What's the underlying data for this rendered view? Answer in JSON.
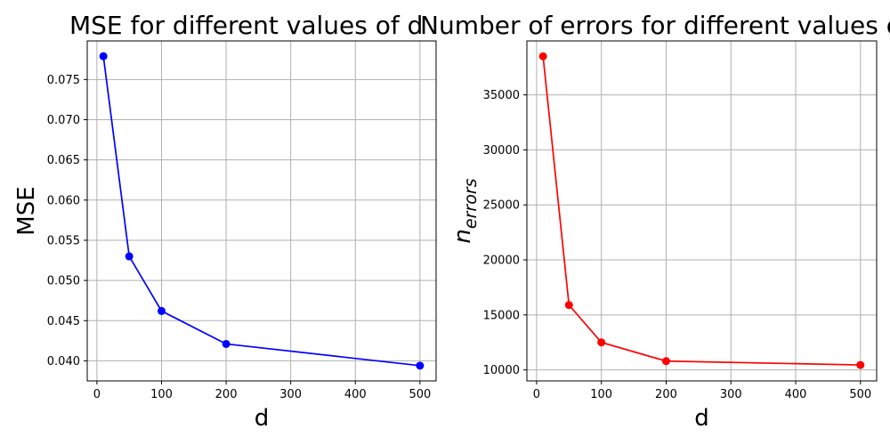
{
  "chart_data": [
    {
      "type": "line",
      "title": "MSE for different values of d",
      "xlabel": "d",
      "ylabel": "MSE",
      "ylabel_italic": false,
      "x": [
        10,
        50,
        100,
        200,
        500
      ],
      "series": [
        {
          "values": [
            0.0779,
            0.053,
            0.0462,
            0.0421,
            0.0394
          ],
          "color": "#0000ff"
        }
      ],
      "xlim": [
        -15,
        525
      ],
      "ylim": [
        0.0375,
        0.0798
      ],
      "xticks": [
        0,
        100,
        200,
        300,
        400,
        500
      ],
      "yticks": [
        0.04,
        0.045,
        0.05,
        0.055,
        0.06,
        0.065,
        0.07,
        0.075
      ],
      "ytick_labels": [
        "0.040",
        "0.045",
        "0.050",
        "0.055",
        "0.060",
        "0.065",
        "0.070",
        "0.075"
      ],
      "grid": true,
      "marker": "circle"
    },
    {
      "type": "line",
      "title": "Number of errors for different values of d",
      "xlabel": "d",
      "ylabel": "n",
      "ylabel_subscript": "errors",
      "ylabel_italic": true,
      "x": [
        10,
        50,
        100,
        200,
        500
      ],
      "series": [
        {
          "values": [
            38500,
            15900,
            12500,
            10800,
            10450
          ],
          "color": "#ff0000"
        }
      ],
      "xlim": [
        -15,
        525
      ],
      "ylim": [
        9000,
        39900
      ],
      "xticks": [
        0,
        100,
        200,
        300,
        400,
        500
      ],
      "yticks": [
        10000,
        15000,
        20000,
        25000,
        30000,
        35000
      ],
      "ytick_labels": [
        "10000",
        "15000",
        "20000",
        "25000",
        "30000",
        "35000"
      ],
      "grid": true,
      "marker": "circle"
    }
  ]
}
